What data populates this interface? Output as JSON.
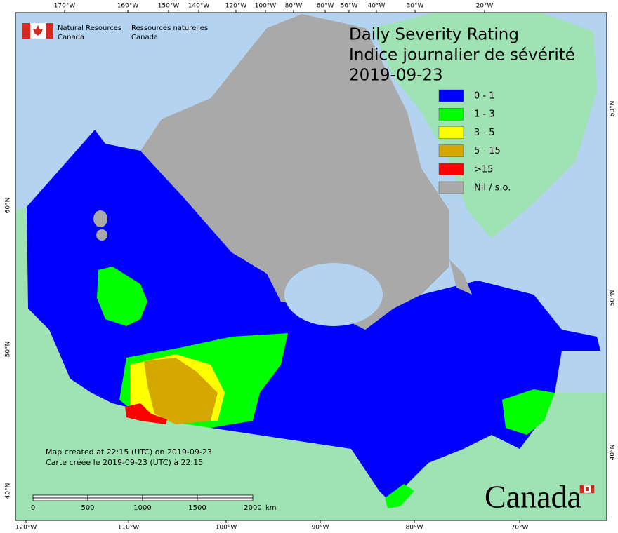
{
  "header": {
    "org_en": [
      "Natural Resources",
      "Canada"
    ],
    "org_fr": [
      "Ressources naturelles",
      "Canada"
    ]
  },
  "title": [
    "Daily Severity Rating",
    "Indice journalier de sévérité",
    "2019-09-23"
  ],
  "legend": [
    {
      "label": "0 - 1",
      "color": "#0000ff"
    },
    {
      "label": "1 - 3",
      "color": "#00ff00"
    },
    {
      "label": "3 - 5",
      "color": "#ffff00"
    },
    {
      "label": "5 - 15",
      "color": "#d4a800"
    },
    {
      "label": ">15",
      "color": "#ff0000"
    },
    {
      "label": "Nil / s.o.",
      "color": "#a9a9a9"
    }
  ],
  "top_labels": [
    "170°W",
    "160°W",
    "150°W",
    "140°W",
    "120°W",
    "100°W",
    "80°W",
    "60°W",
    "50°W",
    "40°W",
    "30°W",
    "20°W"
  ],
  "bottom_labels": [
    "120°W",
    "110°W",
    "100°W",
    "90°W",
    "80°W",
    "70°W"
  ],
  "left_labels": [
    "60°N",
    "50°N",
    "40°N"
  ],
  "right_labels": [
    "60°N",
    "50°N",
    "40°N"
  ],
  "notes": [
    "Map created at 22:15 (UTC) on 2019-09-23",
    "Carte créée le 2019-09-23 (UTC) à 22:15"
  ],
  "scale": {
    "ticks": [
      0,
      500,
      1000,
      1500,
      2000
    ],
    "unit": "km"
  },
  "wordmark": "Canada"
}
